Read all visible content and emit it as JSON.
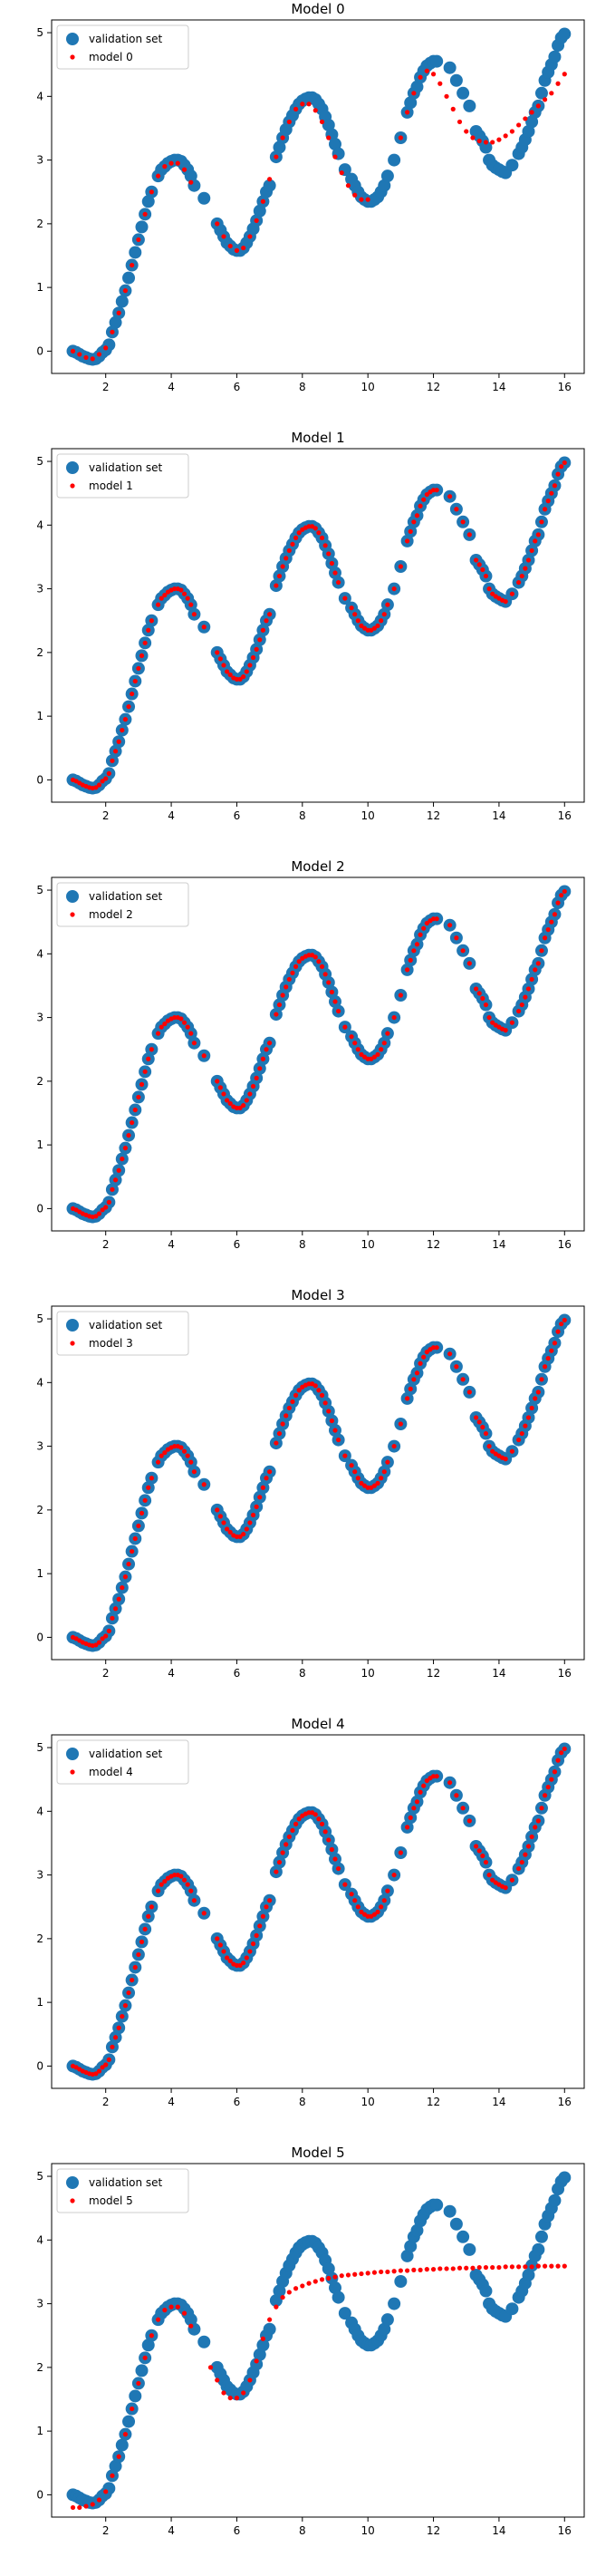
{
  "colors": {
    "validation": "#1f77b4",
    "model": "#ff0000",
    "axis": "#000000"
  },
  "legend_placement": "top-left",
  "chart_data": [
    {
      "type": "scatter",
      "title": "Model 0",
      "xlim": [
        0.35,
        16.6
      ],
      "ylim": [
        -0.35,
        5.2
      ],
      "xticks": [
        2,
        4,
        6,
        8,
        10,
        12,
        14,
        16
      ],
      "yticks": [
        0,
        1,
        2,
        3,
        4,
        5
      ],
      "legend": [
        "validation set",
        "model 0"
      ],
      "validation_series": "validation set",
      "model_points": [
        [
          1.0,
          0.0
        ],
        [
          1.2,
          -0.05
        ],
        [
          1.4,
          -0.1
        ],
        [
          1.6,
          -0.12
        ],
        [
          1.8,
          -0.05
        ],
        [
          2.0,
          0.05
        ],
        [
          2.2,
          0.3
        ],
        [
          2.4,
          0.6
        ],
        [
          2.6,
          0.95
        ],
        [
          2.8,
          1.35
        ],
        [
          3.0,
          1.75
        ],
        [
          3.2,
          2.15
        ],
        [
          3.4,
          2.5
        ],
        [
          3.6,
          2.75
        ],
        [
          3.8,
          2.9
        ],
        [
          4.0,
          2.95
        ],
        [
          4.2,
          2.95
        ],
        [
          4.4,
          2.85
        ],
        [
          4.6,
          2.65
        ],
        [
          5.4,
          2.0
        ],
        [
          5.6,
          1.8
        ],
        [
          5.8,
          1.65
        ],
        [
          6.0,
          1.58
        ],
        [
          6.2,
          1.62
        ],
        [
          6.4,
          1.8
        ],
        [
          6.6,
          2.05
        ],
        [
          6.8,
          2.35
        ],
        [
          7.0,
          2.7
        ],
        [
          7.2,
          3.05
        ],
        [
          7.4,
          3.35
        ],
        [
          7.6,
          3.6
        ],
        [
          7.8,
          3.8
        ],
        [
          8.0,
          3.88
        ],
        [
          8.2,
          3.88
        ],
        [
          8.4,
          3.78
        ],
        [
          8.6,
          3.6
        ],
        [
          8.8,
          3.35
        ],
        [
          9.0,
          3.05
        ],
        [
          9.2,
          2.8
        ],
        [
          9.4,
          2.6
        ],
        [
          9.6,
          2.45
        ],
        [
          9.8,
          2.38
        ],
        [
          10.0,
          2.38
        ],
        [
          11.0,
          3.35
        ],
        [
          11.2,
          3.75
        ],
        [
          11.4,
          4.05
        ],
        [
          11.6,
          4.3
        ],
        [
          11.8,
          4.4
        ],
        [
          12.0,
          4.35
        ],
        [
          12.2,
          4.2
        ],
        [
          12.4,
          4.0
        ],
        [
          12.6,
          3.8
        ],
        [
          12.8,
          3.6
        ],
        [
          13.0,
          3.45
        ],
        [
          13.2,
          3.35
        ],
        [
          13.4,
          3.3
        ],
        [
          13.6,
          3.28
        ],
        [
          13.8,
          3.28
        ],
        [
          14.0,
          3.32
        ],
        [
          14.2,
          3.38
        ],
        [
          14.4,
          3.45
        ],
        [
          14.6,
          3.55
        ],
        [
          14.8,
          3.65
        ],
        [
          15.0,
          3.75
        ],
        [
          15.2,
          3.85
        ],
        [
          15.4,
          3.95
        ],
        [
          15.6,
          4.05
        ],
        [
          15.8,
          4.2
        ],
        [
          16.0,
          4.35
        ]
      ]
    },
    {
      "type": "scatter",
      "title": "Model 1",
      "xlim": [
        0.35,
        16.6
      ],
      "ylim": [
        -0.35,
        5.2
      ],
      "xticks": [
        2,
        4,
        6,
        8,
        10,
        12,
        14,
        16
      ],
      "yticks": [
        0,
        1,
        2,
        3,
        4,
        5
      ],
      "legend": [
        "validation set",
        "model 1"
      ],
      "validation_series": "validation set",
      "model_points": "matches validation set"
    },
    {
      "type": "scatter",
      "title": "Model 2",
      "xlim": [
        0.35,
        16.6
      ],
      "ylim": [
        -0.35,
        5.2
      ],
      "xticks": [
        2,
        4,
        6,
        8,
        10,
        12,
        14,
        16
      ],
      "yticks": [
        0,
        1,
        2,
        3,
        4,
        5
      ],
      "legend": [
        "validation set",
        "model 2"
      ],
      "validation_series": "validation set",
      "model_points": "matches validation set"
    },
    {
      "type": "scatter",
      "title": "Model 3",
      "xlim": [
        0.35,
        16.6
      ],
      "ylim": [
        -0.35,
        5.2
      ],
      "xticks": [
        2,
        4,
        6,
        8,
        10,
        12,
        14,
        16
      ],
      "yticks": [
        0,
        1,
        2,
        3,
        4,
        5
      ],
      "legend": [
        "validation set",
        "model 3"
      ],
      "validation_series": "validation set",
      "model_points": "matches validation set"
    },
    {
      "type": "scatter",
      "title": "Model 4",
      "xlim": [
        0.35,
        16.6
      ],
      "ylim": [
        -0.35,
        5.2
      ],
      "xticks": [
        2,
        4,
        6,
        8,
        10,
        12,
        14,
        16
      ],
      "yticks": [
        0,
        1,
        2,
        3,
        4,
        5
      ],
      "legend": [
        "validation set",
        "model 4"
      ],
      "validation_series": "validation set",
      "model_points": "matches validation set"
    },
    {
      "type": "scatter",
      "title": "Model 5",
      "xlim": [
        0.35,
        16.6
      ],
      "ylim": [
        -0.35,
        5.2
      ],
      "xticks": [
        2,
        4,
        6,
        8,
        10,
        12,
        14,
        16
      ],
      "yticks": [
        0,
        1,
        2,
        3,
        4,
        5
      ],
      "legend": [
        "validation set",
        "model 5"
      ],
      "validation_series": "validation set",
      "model_points": [
        [
          1.0,
          -0.2
        ],
        [
          1.2,
          -0.2
        ],
        [
          1.4,
          -0.18
        ],
        [
          1.6,
          -0.15
        ],
        [
          1.8,
          -0.08
        ],
        [
          2.0,
          0.05
        ],
        [
          2.2,
          0.3
        ],
        [
          2.4,
          0.6
        ],
        [
          2.6,
          0.95
        ],
        [
          2.8,
          1.35
        ],
        [
          3.0,
          1.75
        ],
        [
          3.2,
          2.15
        ],
        [
          3.4,
          2.5
        ],
        [
          3.6,
          2.75
        ],
        [
          3.8,
          2.9
        ],
        [
          4.0,
          2.95
        ],
        [
          4.2,
          2.95
        ],
        [
          4.4,
          2.85
        ],
        [
          4.6,
          2.65
        ],
        [
          5.2,
          2.0
        ],
        [
          5.4,
          1.8
        ],
        [
          5.6,
          1.6
        ],
        [
          5.8,
          1.52
        ],
        [
          6.0,
          1.52
        ],
        [
          6.2,
          1.6
        ],
        [
          6.4,
          1.8
        ],
        [
          6.6,
          2.1
        ],
        [
          6.8,
          2.45
        ],
        [
          7.0,
          2.75
        ],
        [
          7.2,
          2.95
        ],
        [
          7.4,
          3.1
        ],
        [
          7.6,
          3.18
        ],
        [
          7.8,
          3.24
        ],
        [
          8.0,
          3.28
        ],
        [
          8.2,
          3.32
        ],
        [
          8.4,
          3.35
        ],
        [
          8.6,
          3.38
        ],
        [
          8.8,
          3.4
        ],
        [
          9.0,
          3.42
        ],
        [
          9.2,
          3.44
        ],
        [
          9.4,
          3.45
        ],
        [
          9.6,
          3.46
        ],
        [
          9.8,
          3.47
        ],
        [
          10.0,
          3.48
        ],
        [
          10.2,
          3.49
        ],
        [
          10.4,
          3.5
        ],
        [
          10.6,
          3.5
        ],
        [
          10.8,
          3.51
        ],
        [
          11.0,
          3.52
        ],
        [
          11.2,
          3.52
        ],
        [
          11.4,
          3.53
        ],
        [
          11.6,
          3.53
        ],
        [
          11.8,
          3.54
        ],
        [
          12.0,
          3.54
        ],
        [
          12.2,
          3.55
        ],
        [
          12.4,
          3.55
        ],
        [
          12.6,
          3.55
        ],
        [
          12.8,
          3.56
        ],
        [
          13.0,
          3.56
        ],
        [
          13.2,
          3.56
        ],
        [
          13.4,
          3.57
        ],
        [
          13.6,
          3.57
        ],
        [
          13.8,
          3.57
        ],
        [
          14.0,
          3.57
        ],
        [
          14.2,
          3.58
        ],
        [
          14.4,
          3.58
        ],
        [
          14.6,
          3.58
        ],
        [
          14.8,
          3.58
        ],
        [
          15.0,
          3.58
        ],
        [
          15.2,
          3.59
        ],
        [
          15.4,
          3.59
        ],
        [
          15.6,
          3.59
        ],
        [
          15.8,
          3.59
        ],
        [
          16.0,
          3.59
        ]
      ]
    }
  ],
  "validation_set": [
    [
      1.0,
      0.0
    ],
    [
      1.1,
      -0.02
    ],
    [
      1.2,
      -0.05
    ],
    [
      1.3,
      -0.08
    ],
    [
      1.4,
      -0.1
    ],
    [
      1.5,
      -0.12
    ],
    [
      1.6,
      -0.13
    ],
    [
      1.7,
      -0.12
    ],
    [
      1.8,
      -0.08
    ],
    [
      1.9,
      -0.02
    ],
    [
      2.0,
      0.02
    ],
    [
      2.1,
      0.1
    ],
    [
      2.2,
      0.3
    ],
    [
      2.3,
      0.45
    ],
    [
      2.4,
      0.6
    ],
    [
      2.5,
      0.78
    ],
    [
      2.6,
      0.95
    ],
    [
      2.7,
      1.15
    ],
    [
      2.8,
      1.35
    ],
    [
      2.9,
      1.55
    ],
    [
      3.0,
      1.75
    ],
    [
      3.1,
      1.95
    ],
    [
      3.2,
      2.15
    ],
    [
      3.3,
      2.35
    ],
    [
      3.4,
      2.5
    ],
    [
      3.6,
      2.75
    ],
    [
      3.7,
      2.85
    ],
    [
      3.8,
      2.9
    ],
    [
      3.9,
      2.95
    ],
    [
      4.0,
      2.98
    ],
    [
      4.1,
      3.0
    ],
    [
      4.2,
      3.0
    ],
    [
      4.3,
      2.98
    ],
    [
      4.4,
      2.92
    ],
    [
      4.5,
      2.85
    ],
    [
      4.6,
      2.75
    ],
    [
      4.7,
      2.6
    ],
    [
      5.0,
      2.4
    ],
    [
      5.4,
      2.0
    ],
    [
      5.5,
      1.9
    ],
    [
      5.6,
      1.8
    ],
    [
      5.7,
      1.7
    ],
    [
      5.8,
      1.65
    ],
    [
      5.9,
      1.6
    ],
    [
      6.0,
      1.58
    ],
    [
      6.1,
      1.58
    ],
    [
      6.2,
      1.62
    ],
    [
      6.3,
      1.7
    ],
    [
      6.4,
      1.8
    ],
    [
      6.5,
      1.92
    ],
    [
      6.6,
      2.05
    ],
    [
      6.7,
      2.2
    ],
    [
      6.8,
      2.35
    ],
    [
      6.9,
      2.5
    ],
    [
      7.0,
      2.6
    ],
    [
      7.2,
      3.05
    ],
    [
      7.3,
      3.2
    ],
    [
      7.4,
      3.35
    ],
    [
      7.5,
      3.48
    ],
    [
      7.6,
      3.6
    ],
    [
      7.7,
      3.7
    ],
    [
      7.8,
      3.8
    ],
    [
      7.9,
      3.88
    ],
    [
      8.0,
      3.93
    ],
    [
      8.1,
      3.96
    ],
    [
      8.2,
      3.98
    ],
    [
      8.3,
      3.98
    ],
    [
      8.4,
      3.95
    ],
    [
      8.5,
      3.88
    ],
    [
      8.6,
      3.8
    ],
    [
      8.7,
      3.68
    ],
    [
      8.8,
      3.55
    ],
    [
      8.9,
      3.4
    ],
    [
      9.0,
      3.25
    ],
    [
      9.1,
      3.1
    ],
    [
      9.3,
      2.85
    ],
    [
      9.5,
      2.7
    ],
    [
      9.6,
      2.6
    ],
    [
      9.7,
      2.5
    ],
    [
      9.8,
      2.42
    ],
    [
      9.9,
      2.38
    ],
    [
      10.0,
      2.35
    ],
    [
      10.1,
      2.35
    ],
    [
      10.2,
      2.38
    ],
    [
      10.3,
      2.42
    ],
    [
      10.4,
      2.5
    ],
    [
      10.5,
      2.6
    ],
    [
      10.6,
      2.75
    ],
    [
      10.8,
      3.0
    ],
    [
      11.0,
      3.35
    ],
    [
      11.2,
      3.75
    ],
    [
      11.3,
      3.9
    ],
    [
      11.4,
      4.05
    ],
    [
      11.5,
      4.15
    ],
    [
      11.6,
      4.3
    ],
    [
      11.7,
      4.4
    ],
    [
      11.8,
      4.48
    ],
    [
      11.9,
      4.52
    ],
    [
      12.0,
      4.55
    ],
    [
      12.1,
      4.55
    ],
    [
      12.5,
      4.45
    ],
    [
      12.7,
      4.25
    ],
    [
      12.9,
      4.05
    ],
    [
      13.1,
      3.85
    ],
    [
      13.3,
      3.45
    ],
    [
      13.4,
      3.38
    ],
    [
      13.5,
      3.3
    ],
    [
      13.6,
      3.2
    ],
    [
      13.7,
      3.0
    ],
    [
      13.8,
      2.92
    ],
    [
      13.9,
      2.88
    ],
    [
      14.0,
      2.85
    ],
    [
      14.1,
      2.82
    ],
    [
      14.2,
      2.8
    ],
    [
      14.4,
      2.92
    ],
    [
      14.6,
      3.1
    ],
    [
      14.7,
      3.2
    ],
    [
      14.8,
      3.32
    ],
    [
      14.9,
      3.45
    ],
    [
      15.0,
      3.6
    ],
    [
      15.1,
      3.75
    ],
    [
      15.2,
      3.85
    ],
    [
      15.3,
      4.05
    ],
    [
      15.4,
      4.25
    ],
    [
      15.5,
      4.38
    ],
    [
      15.6,
      4.5
    ],
    [
      15.7,
      4.62
    ],
    [
      15.8,
      4.8
    ],
    [
      15.9,
      4.92
    ],
    [
      16.0,
      4.98
    ]
  ]
}
